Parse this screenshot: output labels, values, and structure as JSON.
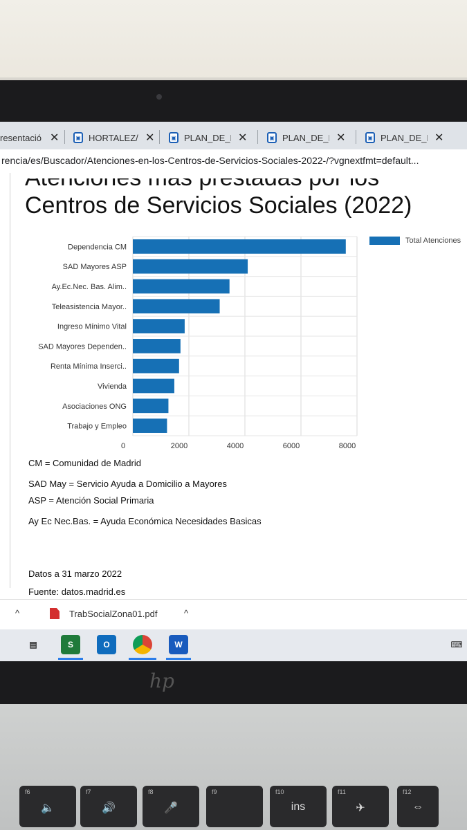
{
  "browser": {
    "tabs": [
      {
        "label": "resentació",
        "icon": "generic-page-icon"
      },
      {
        "label": "HORTALEZ/",
        "icon": "madrid-logo-icon"
      },
      {
        "label": "PLAN_DE_N",
        "icon": "madrid-logo-icon"
      },
      {
        "label": "PLAN_DE_N",
        "icon": "madrid-logo-icon"
      },
      {
        "label": "PLAN_DE_N",
        "icon": "madrid-logo-icon"
      }
    ],
    "close_glyph": "✕",
    "address": "rencia/es/Buscador/Atenciones-en-los-Centros-de-Servicios-Sociales-2022-/?vgnextfmt=default..."
  },
  "page": {
    "title_line1": "Atenciones más prestadas por los",
    "title_line2": "Centros de Servicios Sociales (2022)",
    "notes": [
      "CM = Comunidad de Madrid",
      "SAD May = Servicio Ayuda a Domicilio a Mayores",
      "ASP = Atención Social Primaria",
      "Ay Ec Nec.Bas. = Ayuda Económica Necesidades Basicas"
    ],
    "date_note": "Datos a 31 marzo 2022",
    "source_note": "Fuente: datos.madrid.es"
  },
  "chart_data": {
    "type": "bar",
    "orientation": "horizontal",
    "categories": [
      "Dependencia CM",
      "SAD Mayores ASP",
      "Ay.Ec.Nec. Bas. Alim..",
      "Teleasistencia Mayor..",
      "Ingreso Mínimo Vital",
      "SAD Mayores Dependen..",
      "Renta Mínima Inserci..",
      "Vivienda",
      "Asociaciones ONG",
      "Trabajo y Empleo"
    ],
    "series": [
      {
        "name": "Total Atenciones",
        "values": [
          7600,
          4100,
          3450,
          3100,
          1850,
          1700,
          1650,
          1480,
          1270,
          1220
        ],
        "color": "#1670b5"
      }
    ],
    "xlim": [
      0,
      8000
    ],
    "xticks": [
      "0",
      "2000",
      "4000",
      "6000",
      "8000"
    ],
    "grid": true,
    "legend_position": "top-right"
  },
  "downloads": {
    "file": "TrabSocialZona01.pdf",
    "chevron": "^"
  },
  "taskbar": {
    "apps": [
      {
        "name": "task-view-icon",
        "label": "",
        "color": "#e6e9ee"
      },
      {
        "name": "sigma-app-icon",
        "label": "S",
        "color": "#1f7a3a"
      },
      {
        "name": "outlook-icon",
        "label": "O",
        "color": "#0f6cbd"
      },
      {
        "name": "chrome-icon",
        "label": "",
        "color": "#db4437"
      },
      {
        "name": "word-icon",
        "label": "W",
        "color": "#185abd"
      }
    ]
  },
  "laptop": {
    "brand": "hp",
    "keys": [
      {
        "fn": "f6",
        "icon": "🔈"
      },
      {
        "fn": "f7",
        "icon": "🔊"
      },
      {
        "fn": "f8",
        "icon": "🎤"
      },
      {
        "fn": "f9",
        "icon": ""
      },
      {
        "fn": "f10",
        "icon": "ins"
      },
      {
        "fn": "f11",
        "icon": "✈"
      },
      {
        "fn": "f12",
        "icon": "⇔"
      }
    ]
  }
}
